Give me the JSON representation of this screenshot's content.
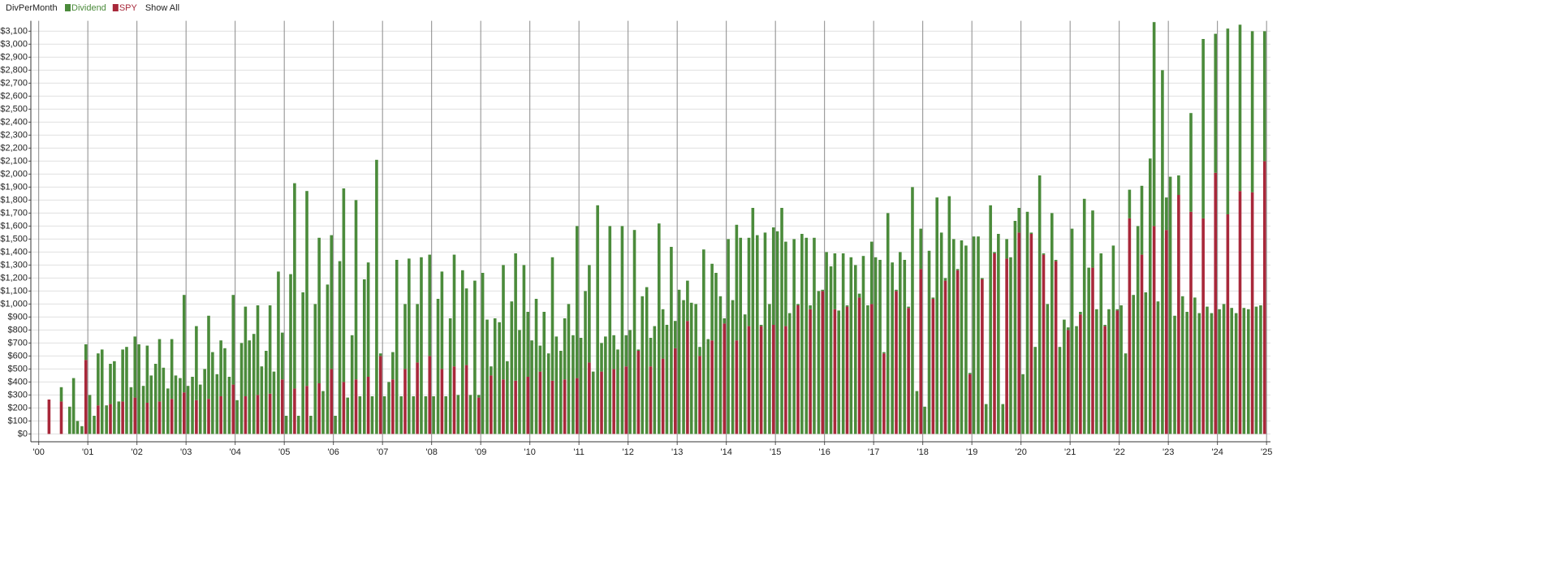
{
  "chart_data": {
    "type": "bar",
    "stacked": true,
    "title": "DivPerMonth",
    "button": "Show All",
    "xlim": [
      1999.84,
      2025.08
    ],
    "ylim": [
      -60,
      3180
    ],
    "xticks": [
      {
        "value": 2000,
        "label": "'00"
      },
      {
        "value": 2001,
        "label": "'01"
      },
      {
        "value": 2002,
        "label": "'02"
      },
      {
        "value": 2003,
        "label": "'03"
      },
      {
        "value": 2004,
        "label": "'04"
      },
      {
        "value": 2005,
        "label": "'05"
      },
      {
        "value": 2006,
        "label": "'06"
      },
      {
        "value": 2007,
        "label": "'07"
      },
      {
        "value": 2008,
        "label": "'08"
      },
      {
        "value": 2009,
        "label": "'09"
      },
      {
        "value": 2010,
        "label": "'10"
      },
      {
        "value": 2011,
        "label": "'11"
      },
      {
        "value": 2012,
        "label": "'12"
      },
      {
        "value": 2013,
        "label": "'13"
      },
      {
        "value": 2014,
        "label": "'14"
      },
      {
        "value": 2015,
        "label": "'15"
      },
      {
        "value": 2016,
        "label": "'16"
      },
      {
        "value": 2017,
        "label": "'17"
      },
      {
        "value": 2018,
        "label": "'18"
      },
      {
        "value": 2019,
        "label": "'19"
      },
      {
        "value": 2020,
        "label": "'20"
      },
      {
        "value": 2021,
        "label": "'21"
      },
      {
        "value": 2022,
        "label": "'22"
      },
      {
        "value": 2023,
        "label": "'23"
      },
      {
        "value": 2024,
        "label": "'24"
      },
      {
        "value": 2025,
        "label": "'25"
      }
    ],
    "yticks": [
      {
        "value": 0,
        "label": "$0"
      },
      {
        "value": 100,
        "label": "$100"
      },
      {
        "value": 200,
        "label": "$200"
      },
      {
        "value": 300,
        "label": "$300"
      },
      {
        "value": 400,
        "label": "$400"
      },
      {
        "value": 500,
        "label": "$500"
      },
      {
        "value": 600,
        "label": "$600"
      },
      {
        "value": 700,
        "label": "$700"
      },
      {
        "value": 800,
        "label": "$800"
      },
      {
        "value": 900,
        "label": "$900"
      },
      {
        "value": 1000,
        "label": "$1,000"
      },
      {
        "value": 1100,
        "label": "$1,100"
      },
      {
        "value": 1200,
        "label": "$1,200"
      },
      {
        "value": 1300,
        "label": "$1,300"
      },
      {
        "value": 1400,
        "label": "$1,400"
      },
      {
        "value": 1500,
        "label": "$1,500"
      },
      {
        "value": 1600,
        "label": "$1,600"
      },
      {
        "value": 1700,
        "label": "$1,700"
      },
      {
        "value": 1800,
        "label": "$1,800"
      },
      {
        "value": 1900,
        "label": "$1,900"
      },
      {
        "value": 2000,
        "label": "$2,000"
      },
      {
        "value": 2100,
        "label": "$2,100"
      },
      {
        "value": 2200,
        "label": "$2,200"
      },
      {
        "value": 2300,
        "label": "$2,300"
      },
      {
        "value": 2400,
        "label": "$2,400"
      },
      {
        "value": 2500,
        "label": "$2,500"
      },
      {
        "value": 2600,
        "label": "$2,600"
      },
      {
        "value": 2700,
        "label": "$2,700"
      },
      {
        "value": 2800,
        "label": "$2,800"
      },
      {
        "value": 2900,
        "label": "$2,900"
      },
      {
        "value": 3000,
        "label": "$3,000"
      },
      {
        "value": 3100,
        "label": "$3,100"
      }
    ],
    "grid": true,
    "x": [
      2000.04,
      2000.13,
      2000.21,
      2000.29,
      2000.38,
      2000.46,
      2000.54,
      2000.63,
      2000.71,
      2000.79,
      2000.88,
      2000.96,
      2001.04,
      2001.13,
      2001.21,
      2001.29,
      2001.38,
      2001.46,
      2001.54,
      2001.63,
      2001.71,
      2001.79,
      2001.88,
      2001.96,
      2002.04,
      2002.13,
      2002.21,
      2002.29,
      2002.38,
      2002.46,
      2002.54,
      2002.63,
      2002.71,
      2002.79,
      2002.88,
      2002.96,
      2003.04,
      2003.13,
      2003.21,
      2003.29,
      2003.38,
      2003.46,
      2003.54,
      2003.63,
      2003.71,
      2003.79,
      2003.88,
      2003.96,
      2004.04,
      2004.13,
      2004.21,
      2004.29,
      2004.38,
      2004.46,
      2004.54,
      2004.63,
      2004.71,
      2004.79,
      2004.88,
      2004.96,
      2005.04,
      2005.13,
      2005.21,
      2005.29,
      2005.38,
      2005.46,
      2005.54,
      2005.63,
      2005.71,
      2005.79,
      2005.88,
      2005.96,
      2006.04,
      2006.13,
      2006.21,
      2006.29,
      2006.38,
      2006.46,
      2006.54,
      2006.63,
      2006.71,
      2006.79,
      2006.88,
      2006.96,
      2007.04,
      2007.13,
      2007.21,
      2007.29,
      2007.38,
      2007.46,
      2007.54,
      2007.63,
      2007.71,
      2007.79,
      2007.88,
      2007.96,
      2008.04,
      2008.13,
      2008.21,
      2008.29,
      2008.38,
      2008.46,
      2008.54,
      2008.63,
      2008.71,
      2008.79,
      2008.88,
      2008.96,
      2009.04,
      2009.13,
      2009.21,
      2009.29,
      2009.38,
      2009.46,
      2009.54,
      2009.63,
      2009.71,
      2009.79,
      2009.88,
      2009.96,
      2010.04,
      2010.13,
      2010.21,
      2010.29,
      2010.38,
      2010.46,
      2010.54,
      2010.63,
      2010.71,
      2010.79,
      2010.88,
      2010.96,
      2011.04,
      2011.13,
      2011.21,
      2011.29,
      2011.38,
      2011.46,
      2011.54,
      2011.63,
      2011.71,
      2011.79,
      2011.88,
      2011.96,
      2012.04,
      2012.13,
      2012.21,
      2012.29,
      2012.38,
      2012.46,
      2012.54,
      2012.63,
      2012.71,
      2012.79,
      2012.88,
      2012.96,
      2013.04,
      2013.13,
      2013.21,
      2013.29,
      2013.38,
      2013.46,
      2013.54,
      2013.63,
      2013.71,
      2013.79,
      2013.88,
      2013.96,
      2014.04,
      2014.13,
      2014.21,
      2014.29,
      2014.38,
      2014.46,
      2014.54,
      2014.63,
      2014.71,
      2014.79,
      2014.88,
      2014.96,
      2015.04,
      2015.13,
      2015.21,
      2015.29,
      2015.38,
      2015.46,
      2015.54,
      2015.63,
      2015.71,
      2015.79,
      2015.88,
      2015.96,
      2016.04,
      2016.13,
      2016.21,
      2016.29,
      2016.38,
      2016.46,
      2016.54,
      2016.63,
      2016.71,
      2016.79,
      2016.88,
      2016.96,
      2017.04,
      2017.13,
      2017.21,
      2017.29,
      2017.38,
      2017.46,
      2017.54,
      2017.63,
      2017.71,
      2017.79,
      2017.88,
      2017.96,
      2018.04,
      2018.13,
      2018.21,
      2018.29,
      2018.38,
      2018.46,
      2018.54,
      2018.63,
      2018.71,
      2018.79,
      2018.88,
      2018.96,
      2019.04,
      2019.13,
      2019.21,
      2019.29,
      2019.38,
      2019.46,
      2019.54,
      2019.63,
      2019.71,
      2019.79,
      2019.88,
      2019.96,
      2020.04,
      2020.13,
      2020.21,
      2020.29,
      2020.38,
      2020.46,
      2020.54,
      2020.63,
      2020.71,
      2020.79,
      2020.88,
      2020.96,
      2021.04,
      2021.13,
      2021.21,
      2021.29,
      2021.38,
      2021.46,
      2021.54,
      2021.63,
      2021.71,
      2021.79,
      2021.88,
      2021.96,
      2022.04,
      2022.13,
      2022.21,
      2022.29,
      2022.38,
      2022.46,
      2022.54,
      2022.63,
      2022.71,
      2022.79,
      2022.88,
      2022.96,
      2023.04,
      2023.13,
      2023.21,
      2023.29,
      2023.38,
      2023.46,
      2023.54,
      2023.63,
      2023.71,
      2023.79,
      2023.88,
      2023.96,
      2024.04,
      2024.13,
      2024.21,
      2024.29,
      2024.38,
      2024.46,
      2024.54,
      2024.63,
      2024.71,
      2024.79,
      2024.88,
      2024.96
    ],
    "series": [
      {
        "name": "Dividend",
        "color": "#4b8b3b",
        "values": [
          0,
          0,
          0,
          0,
          0,
          110,
          0,
          210,
          430,
          100,
          60,
          120,
          300,
          140,
          400,
          650,
          220,
          310,
          560,
          250,
          400,
          670,
          360,
          470,
          690,
          370,
          440,
          450,
          540,
          480,
          510,
          350,
          460,
          450,
          430,
          750,
          370,
          440,
          570,
          380,
          500,
          640,
          630,
          460,
          430,
          660,
          440,
          690,
          260,
          700,
          690,
          720,
          770,
          690,
          520,
          640,
          680,
          480,
          1250,
          360,
          140,
          1230,
          1580,
          140,
          1090,
          1500,
          140,
          1000,
          1120,
          330,
          1150,
          1030,
          140,
          1330,
          1490,
          280,
          760,
          1380,
          290,
          1190,
          880,
          290,
          2110,
          20,
          290,
          400,
          210,
          1340,
          290,
          500,
          1350,
          290,
          450,
          1360,
          290,
          780,
          290,
          1040,
          750,
          290,
          890,
          860,
          300,
          1260,
          590,
          300,
          1180,
          20,
          1240,
          880,
          70,
          890,
          860,
          880,
          560,
          1020,
          980,
          800,
          1300,
          500,
          720,
          1040,
          200,
          940,
          620,
          950,
          750,
          640,
          470,
          1000,
          760,
          1170,
          740,
          1100,
          750,
          480,
          1760,
          220,
          750,
          1600,
          260,
          650,
          1600,
          240,
          800,
          1570,
          10,
          1060,
          1130,
          220,
          830,
          1620,
          380,
          840,
          1440,
          210,
          1110,
          1030,
          310,
          1010,
          1000,
          70,
          1420,
          730,
          590,
          1240,
          1060,
          40,
          1500,
          1030,
          890,
          1510,
          920,
          680,
          1740,
          1530,
          10,
          1550,
          1000,
          750,
          1560,
          1740,
          650,
          930,
          1500,
          10,
          1540,
          1510,
          30,
          1510,
          1100,
          10,
          1400,
          1290,
          430,
          950,
          1390,
          10,
          1360,
          1300,
          30,
          1370,
          990,
          480,
          1360,
          1340,
          10,
          1700,
          1320,
          10,
          1400,
          1340,
          10,
          1900,
          330,
          310,
          210,
          1410,
          10,
          1820,
          1550,
          20,
          1830,
          1500,
          10,
          1490,
          1450,
          10,
          1520,
          1520,
          10,
          230,
          1760,
          10,
          1540,
          230,
          150,
          1360,
          1640,
          190,
          460,
          1710,
          10,
          670,
          1990,
          10,
          1000,
          1700,
          10,
          670,
          880,
          20,
          1580,
          830,
          20,
          1810,
          1280,
          440,
          960,
          1390,
          10,
          960,
          1450,
          10,
          990,
          620,
          220,
          1070,
          1600,
          530,
          1090,
          2120,
          1570,
          1020,
          2800,
          250,
          1980,
          910,
          150,
          1060,
          940,
          760,
          1050,
          930,
          1380,
          980,
          930,
          1070,
          960,
          1000,
          1430,
          970,
          930,
          1280,
          970,
          960,
          1240,
          980,
          990,
          1000
        ]
      },
      {
        "name": "SPY",
        "color": "#a8283a",
        "values": [
          0,
          0,
          265,
          0,
          0,
          250,
          0,
          0,
          0,
          0,
          0,
          570,
          0,
          0,
          220,
          0,
          0,
          230,
          0,
          0,
          250,
          0,
          0,
          280,
          0,
          0,
          240,
          0,
          0,
          250,
          0,
          0,
          270,
          0,
          0,
          320,
          0,
          0,
          260,
          0,
          0,
          270,
          0,
          0,
          290,
          0,
          0,
          380,
          0,
          0,
          290,
          0,
          0,
          300,
          0,
          0,
          310,
          0,
          0,
          420,
          0,
          0,
          350,
          0,
          0,
          370,
          0,
          0,
          390,
          0,
          0,
          500,
          0,
          0,
          400,
          0,
          0,
          420,
          0,
          0,
          440,
          0,
          0,
          600,
          0,
          0,
          420,
          0,
          0,
          500,
          0,
          0,
          550,
          0,
          0,
          600,
          0,
          0,
          500,
          0,
          0,
          520,
          0,
          0,
          530,
          0,
          0,
          280,
          0,
          0,
          450,
          0,
          0,
          420,
          0,
          0,
          410,
          0,
          0,
          440,
          0,
          0,
          480,
          0,
          0,
          410,
          0,
          0,
          420,
          0,
          0,
          430,
          0,
          0,
          550,
          0,
          0,
          480,
          0,
          0,
          500,
          0,
          0,
          520,
          0,
          0,
          640,
          0,
          0,
          520,
          0,
          0,
          580,
          0,
          0,
          660,
          0,
          0,
          870,
          0,
          0,
          600,
          0,
          0,
          720,
          0,
          0,
          850,
          0,
          0,
          720,
          0,
          0,
          830,
          0,
          0,
          830,
          0,
          0,
          840,
          0,
          0,
          830,
          0,
          0,
          990,
          0,
          0,
          960,
          0,
          0,
          1100,
          0,
          0,
          960,
          0,
          0,
          980,
          0,
          0,
          1050,
          0,
          0,
          1000,
          0,
          0,
          620,
          0,
          0,
          1100,
          0,
          0,
          970,
          0,
          0,
          1270,
          0,
          0,
          1040,
          0,
          0,
          1180,
          0,
          0,
          1260,
          0,
          0,
          460,
          0,
          0,
          1190,
          0,
          0,
          1390,
          0,
          0,
          1350,
          0,
          0,
          1550,
          0,
          0,
          1540,
          0,
          0,
          1380,
          0,
          0,
          1330,
          0,
          0,
          800,
          0,
          0,
          920,
          0,
          0,
          1280,
          0,
          0,
          830,
          0,
          0,
          950,
          0,
          0,
          1660,
          0,
          0,
          1380,
          0,
          0,
          1600,
          0,
          0,
          1570,
          0,
          0,
          1840,
          0,
          0,
          1710,
          0,
          0,
          1660,
          0,
          0,
          2010,
          0,
          0,
          1690,
          0,
          0,
          1870,
          0,
          0,
          1860,
          0,
          0,
          2100
        ]
      }
    ]
  }
}
